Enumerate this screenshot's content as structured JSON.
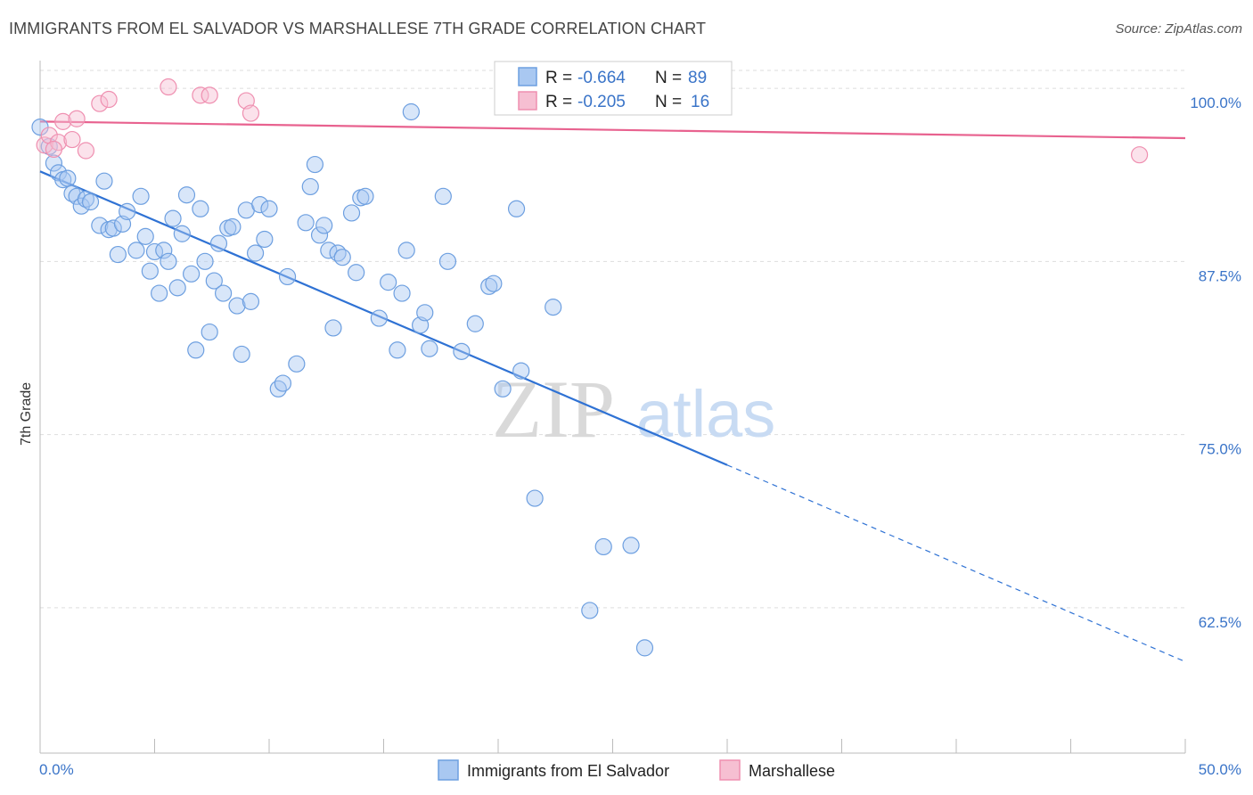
{
  "header": {
    "title": "IMMIGRANTS FROM EL SALVADOR VS MARSHALLESE 7TH GRADE CORRELATION CHART",
    "source": "Source: ZipAtlas.com"
  },
  "watermark": {
    "zip": "ZIP",
    "atlas": "atlas"
  },
  "colors": {
    "blue": "#6d9fe0",
    "blue_fill": "#a9c8f1",
    "blue_line": "#2f72d4",
    "pink": "#ef8fb0",
    "pink_fill": "#f6bfd2",
    "pink_line": "#e8628f",
    "axis_text": "#3a74c8",
    "grid": "#dddddd"
  },
  "legend": {
    "r_label": "R =",
    "n_label": "N =",
    "blue": {
      "r": "-0.664",
      "n": "89"
    },
    "pink": {
      "r": "-0.205",
      "n": "16"
    }
  },
  "chart_data": {
    "type": "scatter",
    "title": "IMMIGRANTS FROM EL SALVADOR VS MARSHALLESE 7TH GRADE CORRELATION CHART",
    "xlabel": "",
    "ylabel": "7th Grade",
    "xlim": [
      0,
      50
    ],
    "ylim": [
      52,
      102
    ],
    "x_tick_labels": [
      "0.0%",
      "50.0%"
    ],
    "y_ticks": [
      62.5,
      75.0,
      87.5,
      100.0
    ],
    "y_tick_labels": [
      "62.5%",
      "75.0%",
      "87.5%",
      "100.0%"
    ],
    "grid": true,
    "series": [
      {
        "name": "Immigrants from El Salvador",
        "color": "#6d9fe0",
        "r": -0.664,
        "n": 89,
        "trend": {
          "x0": 0,
          "y0": 94.0,
          "x1": 30,
          "y1": 72.8,
          "dash_to_x": 50,
          "dash_to_y": 58.6
        },
        "points": [
          [
            0.0,
            97.2
          ],
          [
            0.4,
            95.8
          ],
          [
            0.6,
            94.6
          ],
          [
            0.8,
            93.9
          ],
          [
            1.0,
            93.4
          ],
          [
            1.2,
            93.5
          ],
          [
            1.4,
            92.4
          ],
          [
            1.6,
            92.2
          ],
          [
            1.8,
            91.5
          ],
          [
            2.0,
            92.0
          ],
          [
            2.2,
            91.8
          ],
          [
            2.6,
            90.1
          ],
          [
            2.8,
            93.3
          ],
          [
            3.0,
            89.8
          ],
          [
            3.2,
            89.9
          ],
          [
            3.4,
            88.0
          ],
          [
            3.6,
            90.2
          ],
          [
            3.8,
            91.1
          ],
          [
            4.2,
            88.3
          ],
          [
            4.4,
            92.2
          ],
          [
            4.6,
            89.3
          ],
          [
            4.8,
            86.8
          ],
          [
            5.0,
            88.2
          ],
          [
            5.2,
            85.2
          ],
          [
            5.4,
            88.3
          ],
          [
            5.6,
            87.5
          ],
          [
            5.8,
            90.6
          ],
          [
            6.0,
            85.6
          ],
          [
            6.2,
            89.5
          ],
          [
            6.4,
            92.3
          ],
          [
            6.6,
            86.6
          ],
          [
            6.8,
            81.1
          ],
          [
            7.0,
            91.3
          ],
          [
            7.2,
            87.5
          ],
          [
            7.4,
            82.4
          ],
          [
            7.6,
            86.1
          ],
          [
            7.8,
            88.8
          ],
          [
            8.0,
            85.2
          ],
          [
            8.2,
            89.9
          ],
          [
            8.4,
            90.0
          ],
          [
            8.6,
            84.3
          ],
          [
            8.8,
            80.8
          ],
          [
            9.0,
            91.2
          ],
          [
            9.2,
            84.6
          ],
          [
            9.4,
            88.1
          ],
          [
            9.6,
            91.6
          ],
          [
            9.8,
            89.1
          ],
          [
            10.0,
            91.3
          ],
          [
            10.4,
            78.3
          ],
          [
            10.6,
            78.7
          ],
          [
            10.8,
            86.4
          ],
          [
            11.2,
            80.1
          ],
          [
            11.6,
            90.3
          ],
          [
            11.8,
            92.9
          ],
          [
            12.0,
            94.5
          ],
          [
            12.2,
            89.4
          ],
          [
            12.4,
            90.1
          ],
          [
            12.6,
            88.3
          ],
          [
            12.8,
            82.7
          ],
          [
            13.0,
            88.1
          ],
          [
            13.2,
            87.8
          ],
          [
            13.6,
            91.0
          ],
          [
            13.8,
            86.7
          ],
          [
            14.0,
            92.1
          ],
          [
            14.2,
            92.2
          ],
          [
            14.8,
            83.4
          ],
          [
            15.2,
            86.0
          ],
          [
            15.6,
            81.1
          ],
          [
            15.8,
            85.2
          ],
          [
            16.0,
            88.3
          ],
          [
            16.2,
            98.3
          ],
          [
            16.6,
            82.9
          ],
          [
            16.8,
            83.8
          ],
          [
            17.0,
            81.2
          ],
          [
            17.6,
            92.2
          ],
          [
            17.8,
            87.5
          ],
          [
            18.4,
            81.0
          ],
          [
            19.0,
            83.0
          ],
          [
            19.6,
            85.7
          ],
          [
            19.8,
            85.9
          ],
          [
            20.2,
            78.3
          ],
          [
            20.8,
            91.3
          ],
          [
            21.0,
            79.6
          ],
          [
            21.6,
            70.4
          ],
          [
            22.4,
            84.2
          ],
          [
            24.0,
            62.3
          ],
          [
            24.6,
            66.9
          ],
          [
            25.8,
            67.0
          ],
          [
            26.4,
            59.6
          ]
        ]
      },
      {
        "name": "Marshallese",
        "color": "#ef8fb0",
        "r": -0.205,
        "n": 16,
        "trend": {
          "x0": 0,
          "y0": 97.6,
          "x1": 50,
          "y1": 96.4
        },
        "points": [
          [
            0.2,
            95.9
          ],
          [
            0.4,
            96.6
          ],
          [
            0.8,
            96.1
          ],
          [
            1.0,
            97.6
          ],
          [
            1.4,
            96.3
          ],
          [
            1.6,
            97.8
          ],
          [
            2.0,
            95.5
          ],
          [
            2.6,
            98.9
          ],
          [
            3.0,
            99.2
          ],
          [
            5.6,
            100.1
          ],
          [
            7.0,
            99.5
          ],
          [
            7.4,
            99.5
          ],
          [
            9.0,
            99.1
          ],
          [
            9.2,
            98.2
          ],
          [
            48.0,
            95.2
          ],
          [
            0.6,
            95.6
          ]
        ]
      }
    ]
  }
}
